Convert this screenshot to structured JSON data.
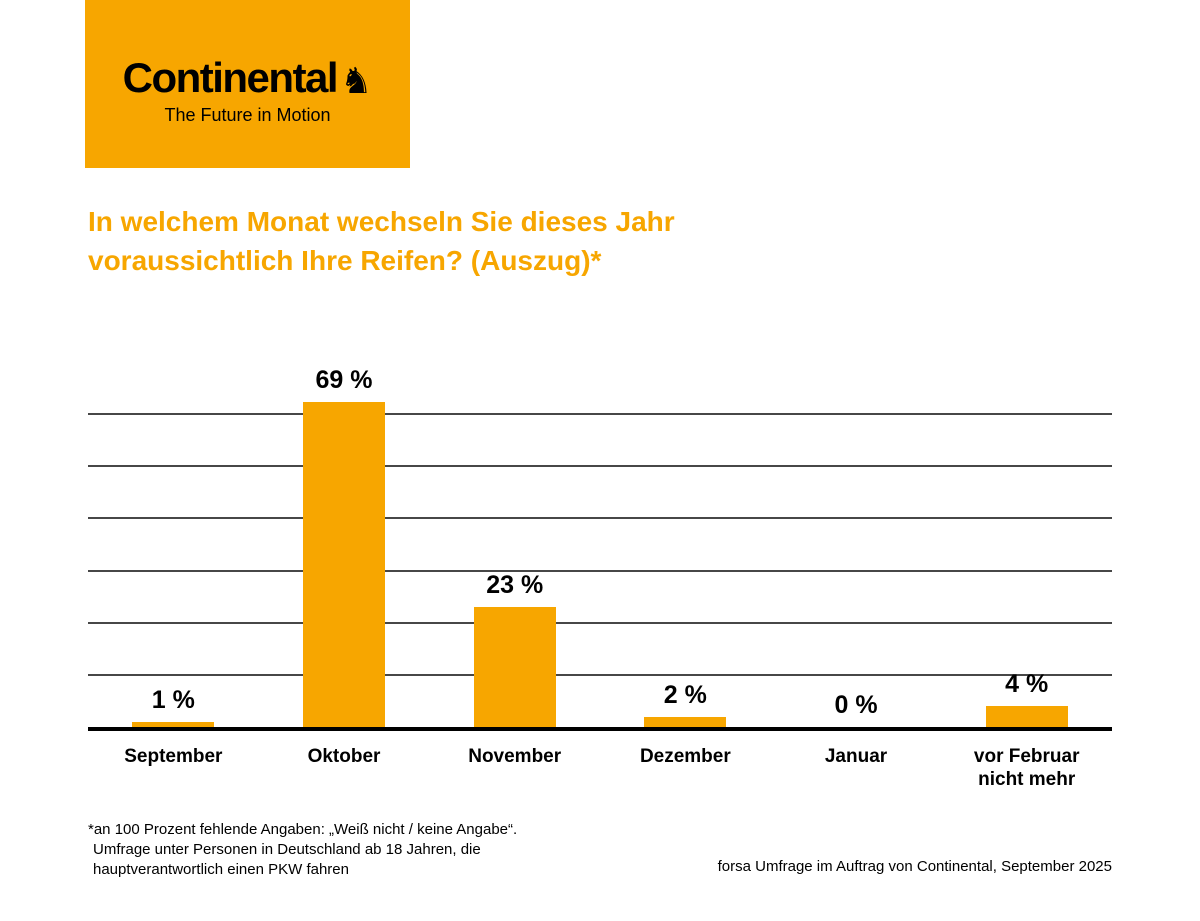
{
  "brand": {
    "name": "Continental",
    "tagline": "The Future in Motion",
    "horse_icon": "♞",
    "accent_color": "#F7A600",
    "logo_text_color": "#000000"
  },
  "title": {
    "line1": "In welchem Monat wechseln Sie dieses Jahr",
    "line2": "voraussichtlich Ihre Reifen? (Auszug)*"
  },
  "chart_data": {
    "type": "bar",
    "title": "In welchem Monat wechseln Sie dieses Jahr voraussichtlich Ihre Reifen? (Auszug)*",
    "categories": [
      "September",
      "Oktober",
      "November",
      "Dezember",
      "Januar",
      "vor Februar\nnicht mehr"
    ],
    "values": [
      1,
      69,
      23,
      2,
      0,
      4
    ],
    "value_labels": [
      "1 %",
      "69 %",
      "23 %",
      "2 %",
      "0 %",
      "4 %"
    ],
    "unit": "%",
    "xlabel": "",
    "ylabel": "",
    "ylim": [
      0,
      70
    ],
    "gridline_values": [
      10,
      20,
      30,
      40,
      50,
      60
    ],
    "grid": true,
    "legend": false,
    "bar_color": "#F7A600",
    "axis_color": "#000000",
    "gridline_color": "#474747"
  },
  "footnote": {
    "lines": [
      "*an 100 Prozent fehlende Angaben: „Weiß nicht / keine Angabe“.",
      "Umfrage unter Personen in Deutschland ab 18 Jahren, die",
      "hauptverantwortlich einen PKW fahren"
    ],
    "source": "forsa Umfrage im Auftrag von Continental, September 2025"
  }
}
